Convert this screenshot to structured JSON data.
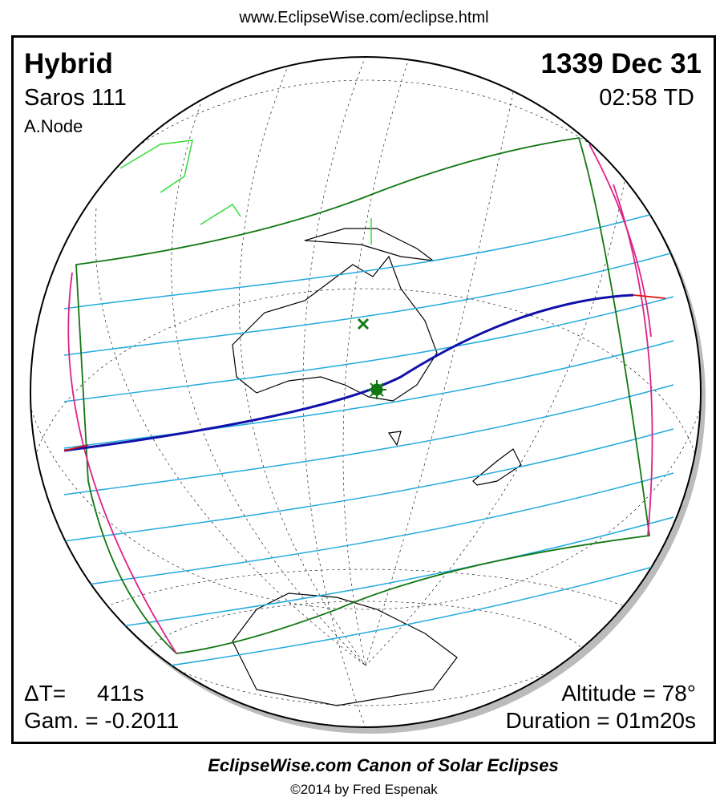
{
  "header": {
    "url": "www.EclipseWise.com/eclipse.html"
  },
  "panel": {
    "eclipse_type": "Hybrid",
    "saros": "Saros 111",
    "node": "A.Node",
    "date": "1339 Dec 31",
    "time": "02:58 TD",
    "delta_t_label": "ΔT=",
    "delta_t_value": "411s",
    "gamma": "Gam. = -0.2011",
    "altitude": "Altitude = 78°",
    "duration": "Duration = 01m20s"
  },
  "footer": {
    "title": "EclipseWise.com Canon of Solar Eclipses",
    "copyright": "©2014 by Fred Espenak"
  }
}
